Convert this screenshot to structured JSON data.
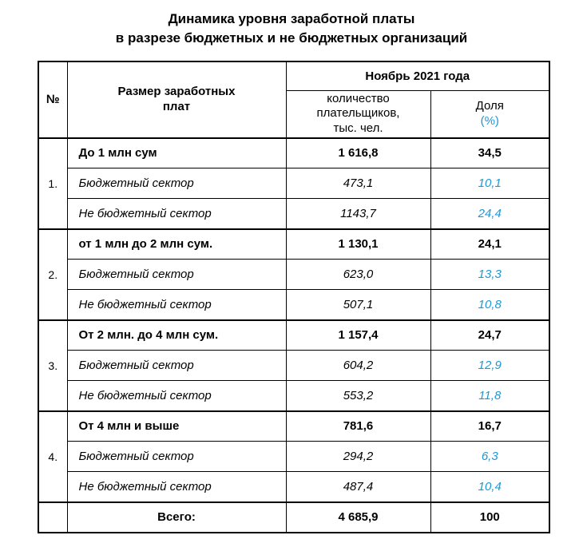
{
  "title": {
    "line1": "Динамика уровня заработной платы",
    "line2": "в разрезе бюджетных и не бюджетных организаций"
  },
  "table": {
    "header": {
      "num": "№",
      "size_line1": "Размер заработных",
      "size_line2": "плат",
      "period": "Ноябрь 2021 года",
      "count_line1": "количество",
      "count_line2": "плательщиков,",
      "count_line3": "тыс. чел.",
      "share_label": "Доля",
      "share_unit": "(%)"
    },
    "groups": [
      {
        "num": "1.",
        "rows": [
          {
            "label": "До 1 млн сум",
            "count": "1 616,8",
            "share": "34,5"
          },
          {
            "label": "Бюджетный сектор",
            "count": "473,1",
            "share": "10,1"
          },
          {
            "label": "Не бюджетный сектор",
            "count": "1143,7",
            "share": "24,4"
          }
        ]
      },
      {
        "num": "2.",
        "rows": [
          {
            "label": "от 1 млн до 2 млн сум.",
            "count": "1 130,1",
            "share": "24,1"
          },
          {
            "label": "Бюджетный сектор",
            "count": "623,0",
            "share": "13,3"
          },
          {
            "label": "Не бюджетный сектор",
            "count": "507,1",
            "share": "10,8"
          }
        ]
      },
      {
        "num": "3.",
        "rows": [
          {
            "label": "От 2 млн. до 4 млн сум.",
            "count": "1 157,4",
            "share": "24,7"
          },
          {
            "label": "Бюджетный сектор",
            "count": "604,2",
            "share": "12,9"
          },
          {
            "label": "Не бюджетный сектор",
            "count": "553,2",
            "share": "11,8"
          }
        ]
      },
      {
        "num": "4.",
        "rows": [
          {
            "label": "От 4 млн и выше",
            "count": "781,6",
            "share": "16,7"
          },
          {
            "label": "Бюджетный сектор",
            "count": "294,2",
            "share": "6,3"
          },
          {
            "label": "Не бюджетный сектор",
            "count": "487,4",
            "share": "10,4"
          }
        ]
      }
    ],
    "total": {
      "label": "Всего:",
      "count": "4 685,9",
      "share": "100"
    }
  },
  "colors": {
    "accent_blue": "#1b98d6",
    "text": "#000000",
    "border": "#000000"
  }
}
